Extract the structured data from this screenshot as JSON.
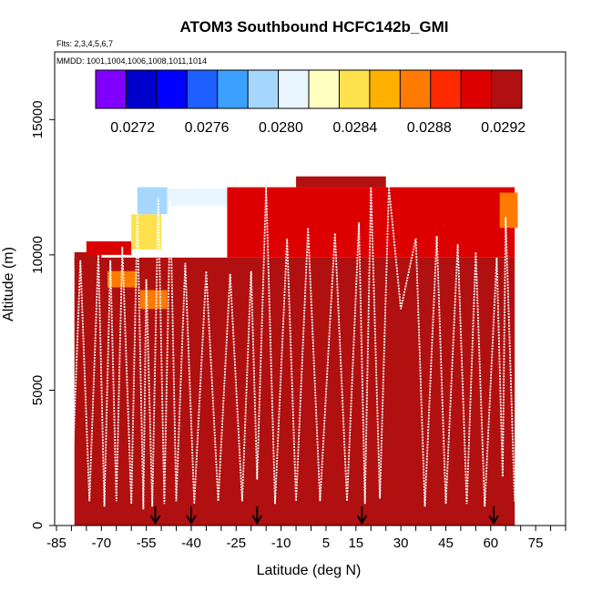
{
  "chart_data": {
    "type": "heatmap",
    "title": "ATOM3 Southbound HCFC142b_GMI",
    "flights_label": "Flts: 2,3,4,5,6,7",
    "dates_label": "MMDD: 1001,1004,1006,1008,1011,1014",
    "xlabel": "Latitude (deg N)",
    "ylabel": "Altitude (m)",
    "xlim": [
      -85,
      85
    ],
    "ylim": [
      0,
      17500
    ],
    "x_ticks": [
      -85,
      -70,
      -55,
      -40,
      -25,
      -10,
      5,
      15,
      30,
      45,
      60,
      75
    ],
    "y_ticks": [
      0,
      5000,
      10000,
      15000
    ],
    "colorbar": {
      "colors": [
        "#7f00ff",
        "#0000cc",
        "#0000ff",
        "#1e5fff",
        "#3ca0ff",
        "#a6d8ff",
        "#eaf6ff",
        "#ffffc0",
        "#ffe14d",
        "#ffb000",
        "#ff7a00",
        "#ff2a00",
        "#dd0000",
        "#b01010"
      ],
      "ticks": [
        "0.0272",
        "0.0276",
        "0.0280",
        "0.0284",
        "0.0288",
        "0.0292"
      ],
      "tick_values": [
        0.0272,
        0.0276,
        0.028,
        0.0284,
        0.0288,
        0.0292
      ],
      "range": [
        0.027,
        0.0293
      ]
    },
    "arrow_latitudes": [
      -52,
      -40,
      -18,
      17,
      61
    ],
    "grid_blocks": [
      {
        "lat": [
          -79,
          68
        ],
        "alt": [
          0,
          9900
        ],
        "value": 0.02915
      },
      {
        "lat": [
          -74,
          68
        ],
        "alt": [
          0,
          900
        ],
        "value": 0.02925
      },
      {
        "lat": [
          -79,
          -70
        ],
        "alt": [
          9600,
          10100
        ],
        "value": 0.02915
      },
      {
        "lat": [
          -75,
          -60
        ],
        "alt": [
          10000,
          10500
        ],
        "value": 0.02905
      },
      {
        "lat": [
          -68,
          -58
        ],
        "alt": [
          8800,
          9400
        ],
        "value": 0.0288
      },
      {
        "lat": [
          -57,
          -48
        ],
        "alt": [
          8000,
          8700
        ],
        "value": 0.0287
      },
      {
        "lat": [
          -60,
          -50
        ],
        "alt": [
          10200,
          11500
        ],
        "value": 0.02835
      },
      {
        "lat": [
          -58,
          -48
        ],
        "alt": [
          11500,
          12500
        ],
        "value": 0.0279
      },
      {
        "lat": [
          -48,
          -28
        ],
        "alt": [
          11800,
          12450
        ],
        "value": 0.0281
      },
      {
        "lat": [
          -28,
          68
        ],
        "alt": [
          9900,
          12500
        ],
        "value": 0.02912
      },
      {
        "lat": [
          -5,
          25
        ],
        "alt": [
          12500,
          12900
        ],
        "value": 0.0292
      },
      {
        "lat": [
          63,
          69
        ],
        "alt": [
          11000,
          12300
        ],
        "value": 0.02875
      }
    ],
    "flight_track": [
      {
        "lat": -82,
        "alt": 9900
      },
      {
        "lat": -80,
        "alt": 1000
      },
      {
        "lat": -77,
        "alt": 9800
      },
      {
        "lat": -74,
        "alt": 900
      },
      {
        "lat": -71,
        "alt": 10000
      },
      {
        "lat": -69,
        "alt": 700
      },
      {
        "lat": -67,
        "alt": 9800
      },
      {
        "lat": -65,
        "alt": 900
      },
      {
        "lat": -63,
        "alt": 10300
      },
      {
        "lat": -60,
        "alt": 800
      },
      {
        "lat": -58,
        "alt": 11500
      },
      {
        "lat": -56,
        "alt": 600
      },
      {
        "lat": -55,
        "alt": 9100
      },
      {
        "lat": -53,
        "alt": 700
      },
      {
        "lat": -51,
        "alt": 12100
      },
      {
        "lat": -49,
        "alt": 800
      },
      {
        "lat": -47,
        "alt": 12000
      },
      {
        "lat": -45,
        "alt": 900
      },
      {
        "lat": -42,
        "alt": 9700
      },
      {
        "lat": -39,
        "alt": 800
      },
      {
        "lat": -35,
        "alt": 9400
      },
      {
        "lat": -31,
        "alt": 900
      },
      {
        "lat": -27,
        "alt": 9300
      },
      {
        "lat": -23,
        "alt": 900
      },
      {
        "lat": -20,
        "alt": 9400
      },
      {
        "lat": -18,
        "alt": 1700
      },
      {
        "lat": -15,
        "alt": 12500
      },
      {
        "lat": -12,
        "alt": 800
      },
      {
        "lat": -8,
        "alt": 10600
      },
      {
        "lat": -5,
        "alt": 900
      },
      {
        "lat": -1,
        "alt": 11000
      },
      {
        "lat": 3,
        "alt": 900
      },
      {
        "lat": 8,
        "alt": 10800
      },
      {
        "lat": 12,
        "alt": 900
      },
      {
        "lat": 16,
        "alt": 11200
      },
      {
        "lat": 18,
        "alt": 800
      },
      {
        "lat": 20,
        "alt": 12500
      },
      {
        "lat": 23,
        "alt": 1000
      },
      {
        "lat": 26,
        "alt": 12500
      },
      {
        "lat": 30,
        "alt": 8000
      },
      {
        "lat": 35,
        "alt": 10600
      },
      {
        "lat": 38,
        "alt": 700
      },
      {
        "lat": 42,
        "alt": 10700
      },
      {
        "lat": 45,
        "alt": 800
      },
      {
        "lat": 49,
        "alt": 10400
      },
      {
        "lat": 52,
        "alt": 800
      },
      {
        "lat": 55,
        "alt": 10100
      },
      {
        "lat": 58,
        "alt": 700
      },
      {
        "lat": 62,
        "alt": 9900
      },
      {
        "lat": 64,
        "alt": 1800
      },
      {
        "lat": 65,
        "alt": 11400
      },
      {
        "lat": 68,
        "alt": 900
      }
    ]
  }
}
